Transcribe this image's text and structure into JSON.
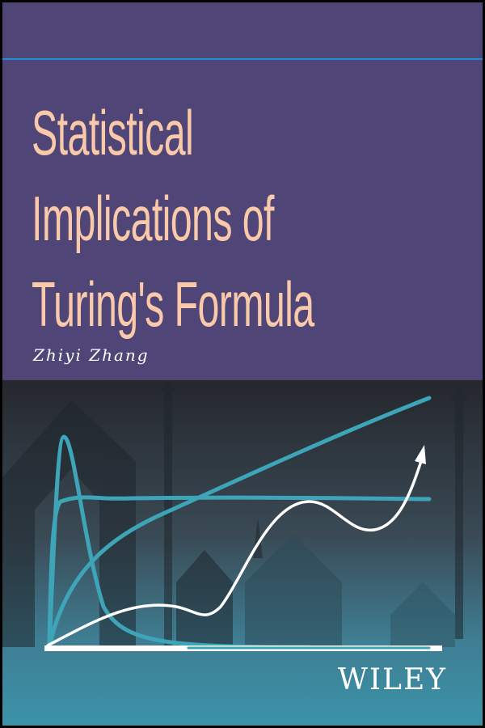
{
  "cover": {
    "title_lines": [
      "Statistical",
      "Implications of",
      "Turing's Formula"
    ],
    "author": "Zhiyi Zhang",
    "publisher": "WILEY"
  },
  "colors": {
    "top_panel": "#4f4677",
    "rule": "#1d8fd2",
    "title": "#f9c9aa",
    "curve_teal": "#3ea5b8",
    "curve_white": "#ffffff"
  },
  "illustration": {
    "description_icons": [
      "up-arrow-pattern",
      "growth-curves"
    ]
  }
}
